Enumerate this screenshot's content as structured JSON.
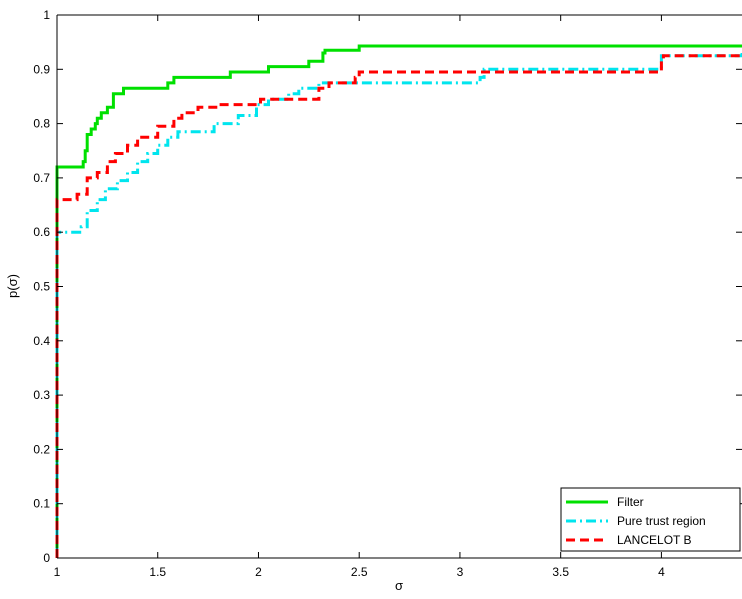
{
  "chart_data": {
    "type": "line",
    "title": "",
    "xlabel": "σ",
    "ylabel": "p(σ)",
    "xlim": [
      1,
      4.4
    ],
    "ylim": [
      0,
      1
    ],
    "xticks": [
      "1",
      "1.5",
      "2",
      "2.5",
      "3",
      "3.5",
      "4"
    ],
    "yticks": [
      "0",
      "0.1",
      "0.2",
      "0.3",
      "0.4",
      "0.5",
      "0.6",
      "0.7",
      "0.8",
      "0.9",
      "1"
    ],
    "grid": false,
    "legend_position": "bottom-right",
    "line_style": "step",
    "series": [
      {
        "name": "Filter",
        "color": "#00e000",
        "dash": "solid",
        "points": [
          [
            1,
            0.72
          ],
          [
            1.12,
            0.72
          ],
          [
            1.13,
            0.73
          ],
          [
            1.14,
            0.75
          ],
          [
            1.15,
            0.78
          ],
          [
            1.17,
            0.79
          ],
          [
            1.19,
            0.8
          ],
          [
            1.2,
            0.81
          ],
          [
            1.22,
            0.82
          ],
          [
            1.25,
            0.83
          ],
          [
            1.28,
            0.855
          ],
          [
            1.33,
            0.865
          ],
          [
            1.55,
            0.875
          ],
          [
            1.58,
            0.885
          ],
          [
            1.86,
            0.895
          ],
          [
            2.05,
            0.905
          ],
          [
            2.25,
            0.915
          ],
          [
            2.32,
            0.93
          ],
          [
            2.33,
            0.935
          ],
          [
            2.5,
            0.943
          ],
          [
            4.4,
            0.943
          ]
        ]
      },
      {
        "name": "Pure trust region",
        "color": "#00e5ee",
        "dash": "dashdot",
        "points": [
          [
            1,
            0.6
          ],
          [
            1.12,
            0.61
          ],
          [
            1.15,
            0.64
          ],
          [
            1.2,
            0.66
          ],
          [
            1.24,
            0.68
          ],
          [
            1.3,
            0.695
          ],
          [
            1.35,
            0.71
          ],
          [
            1.4,
            0.73
          ],
          [
            1.45,
            0.745
          ],
          [
            1.5,
            0.76
          ],
          [
            1.55,
            0.775
          ],
          [
            1.6,
            0.785
          ],
          [
            1.78,
            0.8
          ],
          [
            1.9,
            0.815
          ],
          [
            1.99,
            0.835
          ],
          [
            2.05,
            0.845
          ],
          [
            2.15,
            0.855
          ],
          [
            2.2,
            0.865
          ],
          [
            2.3,
            0.875
          ],
          [
            3.1,
            0.885
          ],
          [
            3.12,
            0.9
          ],
          [
            4,
            0.925
          ],
          [
            4.4,
            0.935
          ]
        ]
      },
      {
        "name": "LANCELOT B",
        "color": "#ff0000",
        "dash": "dashed",
        "points": [
          [
            1,
            0.66
          ],
          [
            1.1,
            0.67
          ],
          [
            1.15,
            0.7
          ],
          [
            1.2,
            0.71
          ],
          [
            1.25,
            0.73
          ],
          [
            1.29,
            0.745
          ],
          [
            1.35,
            0.76
          ],
          [
            1.4,
            0.775
          ],
          [
            1.5,
            0.795
          ],
          [
            1.58,
            0.81
          ],
          [
            1.62,
            0.82
          ],
          [
            1.7,
            0.83
          ],
          [
            1.8,
            0.835
          ],
          [
            2.01,
            0.845
          ],
          [
            2.3,
            0.865
          ],
          [
            2.35,
            0.875
          ],
          [
            2.48,
            0.885
          ],
          [
            2.5,
            0.895
          ],
          [
            4,
            0.915
          ],
          [
            4.01,
            0.925
          ],
          [
            4.4,
            0.925
          ]
        ]
      }
    ]
  }
}
